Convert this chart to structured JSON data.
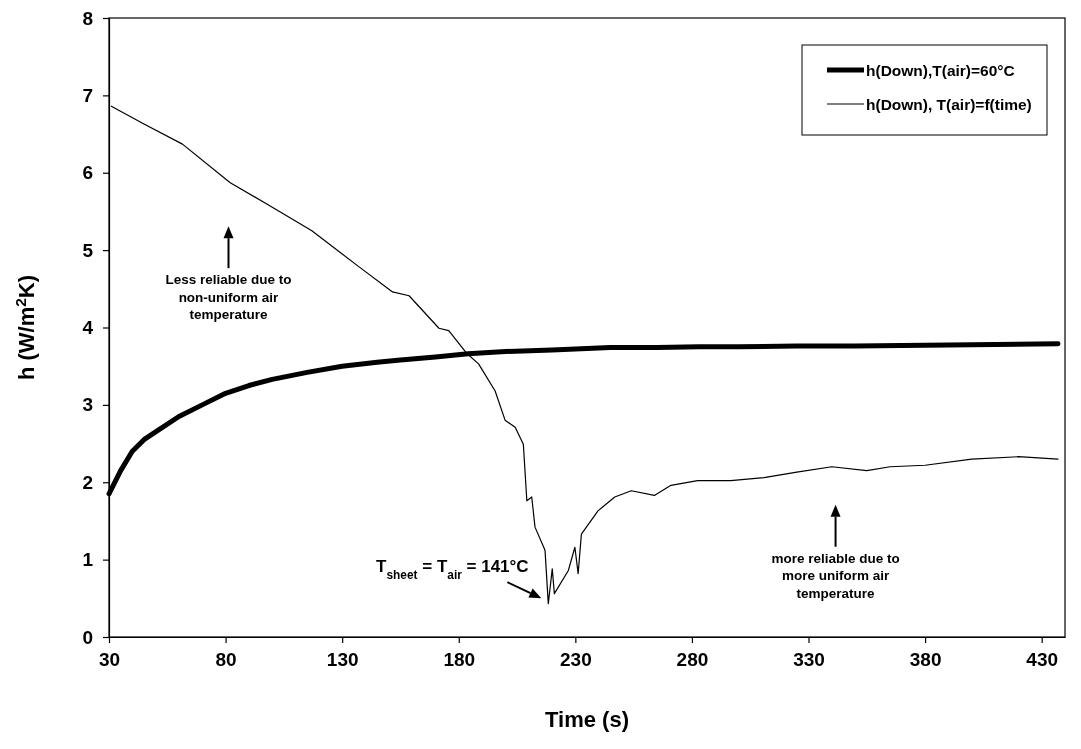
{
  "chart_data": {
    "type": "line",
    "xlabel": "Time (s)",
    "ylabel": "h (W/m$^{2}$K)",
    "xlim": [
      30,
      440
    ],
    "xticks": [
      30,
      80,
      130,
      180,
      230,
      280,
      330,
      380,
      430
    ],
    "ylim": [
      0,
      8
    ],
    "yticks": [
      0,
      1,
      2,
      3,
      4,
      5,
      6,
      7,
      8
    ],
    "grid": false,
    "legend": "top right",
    "marker": "none",
    "line_style": "solid",
    "series": [
      {
        "name": "h(Down),T(air)=60°C",
        "color": "#000000",
        "x": [
          30,
          35,
          40,
          45,
          50,
          60,
          70,
          80,
          90,
          100,
          115,
          130,
          145,
          155,
          170,
          184,
          200,
          220,
          245,
          265,
          283,
          300,
          325,
          350,
          380,
          410,
          437
        ],
        "values": [
          1.85,
          2.15,
          2.4,
          2.55,
          2.65,
          2.85,
          3.0,
          3.15,
          3.25,
          3.33,
          3.42,
          3.5,
          3.55,
          3.58,
          3.62,
          3.66,
          3.69,
          3.71,
          3.74,
          3.74,
          3.75,
          3.75,
          3.76,
          3.76,
          3.77,
          3.78,
          3.79
        ]
      },
      {
        "name": "h(Down), T(air)=f(time)",
        "color": "#000000",
        "x": [
          31,
          45,
          61.5,
          82,
          97.5,
          117,
          137.4,
          151.6,
          158.7,
          171.5,
          175.7,
          183.6,
          188.5,
          195.6,
          199.9,
          204.2,
          207.7,
          209.2,
          211.3,
          212.7,
          217,
          218.4,
          220.1,
          221,
          227,
          229.8,
          231.2,
          232.6,
          239.7,
          246.9,
          254,
          263.9,
          271,
          282.4,
          296.6,
          310.9,
          325,
          340,
          355,
          365,
          380,
          400,
          420,
          437
        ],
        "values": [
          6.86,
          6.63,
          6.37,
          5.87,
          5.6,
          5.25,
          4.78,
          4.46,
          4.41,
          3.99,
          3.96,
          3.66,
          3.53,
          3.18,
          2.8,
          2.71,
          2.49,
          1.76,
          1.81,
          1.42,
          1.12,
          0.43,
          0.88,
          0.56,
          0.86,
          1.16,
          0.82,
          1.33,
          1.63,
          1.81,
          1.89,
          1.83,
          1.96,
          2.02,
          2.02,
          2.06,
          2.13,
          2.2,
          2.15,
          2.2,
          2.22,
          2.3,
          2.33,
          2.3
        ]
      }
    ],
    "annotations": [
      "Less reliable due to non-uniform air temperature",
      {
        "text": "T$_{sheet}$ = T$_{air}$ =  141°C",
        "x": 218,
        "y": 0.45
      },
      "more reliable due to more uniform air temperature"
    ]
  }
}
